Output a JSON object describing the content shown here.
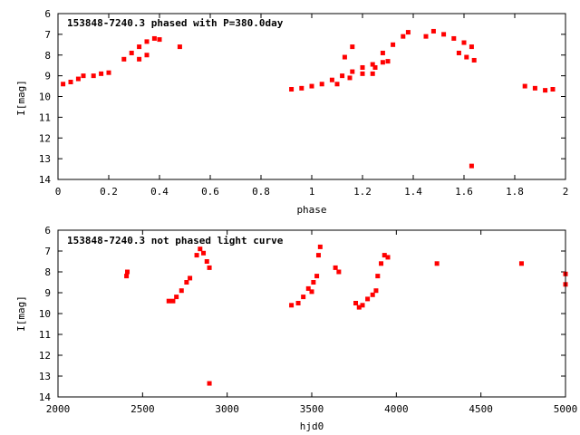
{
  "chart_data": [
    {
      "type": "scatter",
      "title": "153848-7240.3 phased with P=380.0day",
      "xlabel": "phase",
      "ylabel": "I[mag]",
      "xlim": [
        0,
        2
      ],
      "ylim": [
        14,
        6
      ],
      "y_inverted": true,
      "x_ticks": [
        "0",
        "0.2",
        "0.4",
        "0.6",
        "0.8",
        "1",
        "1.2",
        "1.4",
        "1.6",
        "1.8",
        "2"
      ],
      "y_ticks": [
        "6",
        "7",
        "8",
        "9",
        "10",
        "11",
        "12",
        "13",
        "14"
      ],
      "grid": false,
      "marker_color": "#ff0000",
      "series": [
        {
          "values": [
            [
              0.02,
              9.4
            ],
            [
              0.05,
              9.3
            ],
            [
              0.08,
              9.15
            ],
            [
              0.1,
              9.0
            ],
            [
              0.14,
              9.0
            ],
            [
              0.17,
              8.9
            ],
            [
              0.2,
              8.85
            ],
            [
              0.26,
              8.2
            ],
            [
              0.29,
              7.9
            ],
            [
              0.32,
              7.6
            ],
            [
              0.35,
              7.35
            ],
            [
              0.38,
              7.2
            ],
            [
              0.4,
              7.25
            ],
            [
              0.32,
              8.2
            ],
            [
              0.35,
              8.0
            ],
            [
              0.48,
              7.6
            ],
            [
              0.92,
              9.65
            ],
            [
              0.96,
              9.6
            ],
            [
              1.0,
              9.5
            ],
            [
              1.04,
              9.4
            ],
            [
              1.08,
              9.2
            ],
            [
              1.12,
              9.0
            ],
            [
              1.16,
              8.8
            ],
            [
              1.2,
              8.6
            ],
            [
              1.24,
              8.45
            ],
            [
              1.28,
              8.35
            ],
            [
              1.3,
              8.3
            ],
            [
              1.1,
              9.4
            ],
            [
              1.15,
              9.1
            ],
            [
              1.2,
              8.9
            ],
            [
              1.25,
              8.6
            ],
            [
              1.13,
              8.1
            ],
            [
              1.16,
              7.6
            ],
            [
              1.24,
              8.9
            ],
            [
              1.28,
              7.9
            ],
            [
              1.32,
              7.5
            ],
            [
              1.36,
              7.1
            ],
            [
              1.38,
              6.9
            ],
            [
              1.45,
              7.1
            ],
            [
              1.48,
              6.85
            ],
            [
              1.52,
              7.0
            ],
            [
              1.56,
              7.2
            ],
            [
              1.6,
              7.4
            ],
            [
              1.63,
              7.6
            ],
            [
              1.58,
              7.9
            ],
            [
              1.61,
              8.1
            ],
            [
              1.64,
              8.25
            ],
            [
              1.63,
              13.35
            ],
            [
              1.84,
              9.5
            ],
            [
              1.88,
              9.6
            ],
            [
              1.92,
              9.7
            ],
            [
              1.95,
              9.65
            ]
          ]
        }
      ]
    },
    {
      "type": "scatter",
      "title": "153848-7240.3 not phased light curve",
      "xlabel": "hjd0",
      "ylabel": "I[mag]",
      "xlim": [
        2000,
        5000
      ],
      "ylim": [
        14,
        6
      ],
      "y_inverted": true,
      "x_ticks": [
        "2000",
        "2500",
        "3000",
        "3500",
        "4000",
        "4500",
        "5000"
      ],
      "y_ticks": [
        "6",
        "7",
        "8",
        "9",
        "10",
        "11",
        "12",
        "13",
        "14"
      ],
      "grid": false,
      "marker_color": "#ff0000",
      "series": [
        {
          "values": [
            [
              2405,
              8.2
            ],
            [
              2410,
              8.0
            ],
            [
              2655,
              9.4
            ],
            [
              2680,
              9.4
            ],
            [
              2700,
              9.2
            ],
            [
              2730,
              8.9
            ],
            [
              2760,
              8.5
            ],
            [
              2780,
              8.3
            ],
            [
              2820,
              7.2
            ],
            [
              2840,
              6.9
            ],
            [
              2860,
              7.1
            ],
            [
              2880,
              7.5
            ],
            [
              2895,
              7.8
            ],
            [
              2895,
              13.35
            ],
            [
              3380,
              9.6
            ],
            [
              3420,
              9.5
            ],
            [
              3450,
              9.2
            ],
            [
              3480,
              8.8
            ],
            [
              3510,
              8.5
            ],
            [
              3530,
              8.2
            ],
            [
              3500,
              8.95
            ],
            [
              3540,
              7.2
            ],
            [
              3550,
              6.8
            ],
            [
              3640,
              7.8
            ],
            [
              3660,
              8.0
            ],
            [
              3760,
              9.5
            ],
            [
              3780,
              9.7
            ],
            [
              3800,
              9.6
            ],
            [
              3830,
              9.3
            ],
            [
              3860,
              9.1
            ],
            [
              3880,
              8.9
            ],
            [
              3890,
              8.2
            ],
            [
              3910,
              7.6
            ],
            [
              3930,
              7.2
            ],
            [
              3950,
              7.3
            ],
            [
              4240,
              7.6
            ],
            [
              4740,
              7.6
            ],
            [
              5000,
              8.1
            ],
            [
              5000,
              8.6
            ]
          ]
        }
      ]
    }
  ]
}
